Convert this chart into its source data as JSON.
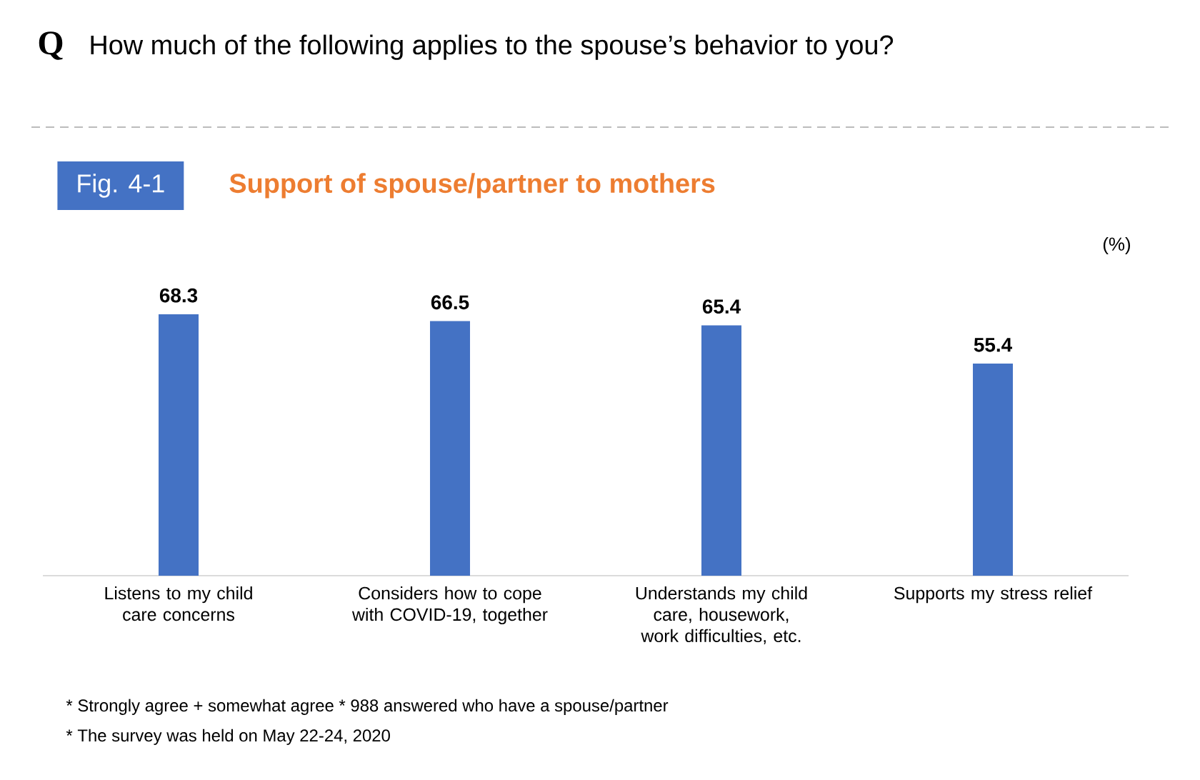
{
  "chart_data": {
    "type": "bar",
    "title": "How much of the following applies to the spouse’s behavior to you?",
    "subtitle": "Support of spouse/partner to mothers",
    "ylabel": "(%)",
    "categories": [
      "Listens to my child care concerns",
      "Considers how to cope with COVID-19, together",
      "Understands my child care, housework, work difficulties, etc.",
      "Supports my stress relief"
    ],
    "values": [
      68.3,
      66.5,
      65.4,
      55.4
    ],
    "color": "#4472c4",
    "data_labels": true,
    "tick_labels": "x",
    "annotations": [
      "Q",
      "Fig. 4-1",
      "* Strongly agree + somewhat agree  * 988 answered who have a spouse/partner",
      "* The survey was held on May 22-24, 2020"
    ]
  }
}
